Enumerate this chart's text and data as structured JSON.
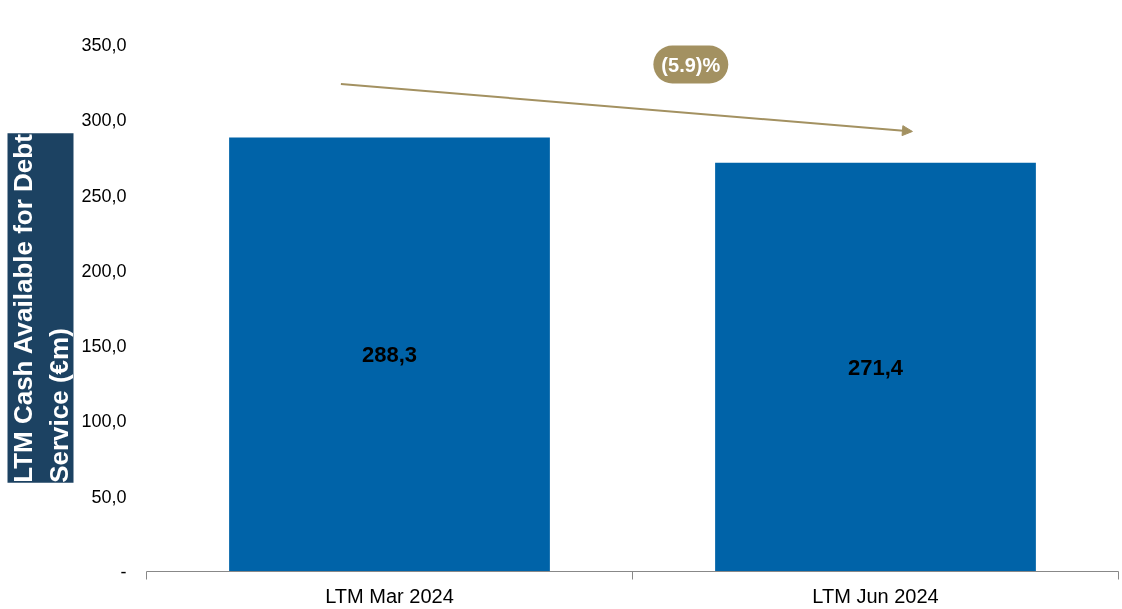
{
  "chart_data": {
    "type": "bar",
    "ylabel": "LTM Cash Available for Debt\nService (€m)",
    "categories": [
      "LTM Mar 2024",
      "LTM Jun 2024"
    ],
    "values": [
      288.3,
      271.4
    ],
    "value_labels": [
      "288,3",
      "271,4"
    ],
    "color": "#0063a8",
    "ylim": [
      0,
      350
    ],
    "yticks": [
      {
        "value": 0,
        "label": "-"
      },
      {
        "value": 50,
        "label": "50,0"
      },
      {
        "value": 100,
        "label": "100,0"
      },
      {
        "value": 150,
        "label": "150,0"
      },
      {
        "value": 200,
        "label": "200,0"
      },
      {
        "value": 250,
        "label": "250,0"
      },
      {
        "value": 300,
        "label": "300,0"
      },
      {
        "value": 350,
        "label": "350,0"
      }
    ],
    "annotations": [
      "(5.9)%"
    ],
    "grid": false
  }
}
